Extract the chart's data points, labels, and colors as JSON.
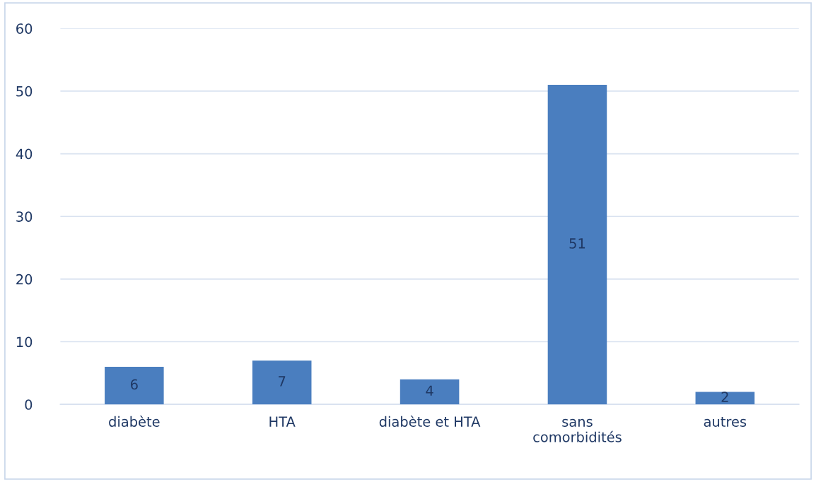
{
  "chart_data": {
    "type": "bar",
    "categories": [
      "diabète",
      "HTA",
      "diabète et HTA",
      "sans\ncomorbidités",
      "autres"
    ],
    "values": [
      6,
      7,
      4,
      51,
      2
    ],
    "color": "#4a7ebf",
    "ylim": [
      0,
      60
    ],
    "yticks": [
      0,
      10,
      20,
      30,
      40,
      50,
      60
    ],
    "grid": "y",
    "data_labels": true
  }
}
